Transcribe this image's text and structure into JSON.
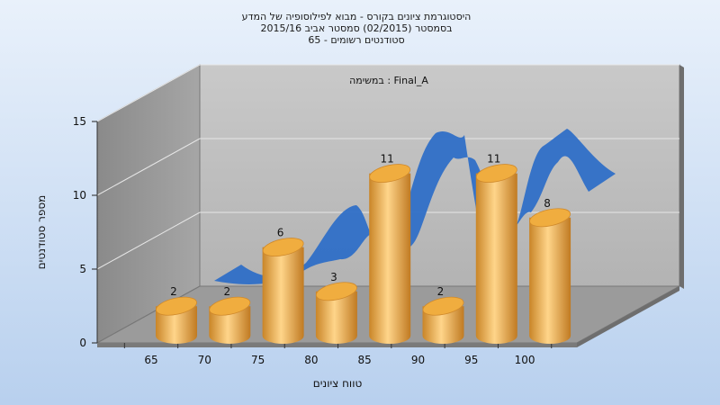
{
  "chart_data": {
    "type": "bar",
    "title_lines": [
      "היסטוגרמת ציונים בקורס - מבוא לפילוסופיה של המדע",
      "בסמסטר  (02/2015)  סמסטר אביב 2015/16",
      "סטודנטים רשומים - 65"
    ],
    "annotation": "במשימה : Final_A",
    "xlabel": "טווח ציונים",
    "ylabel": "מספר סטודנטים",
    "categories": [
      "65",
      "70",
      "75",
      "80",
      "85",
      "90",
      "95",
      "100"
    ],
    "values": [
      2,
      2,
      6,
      3,
      11,
      2,
      11,
      8
    ],
    "y_ticks": [
      "0",
      "5",
      "10",
      "15"
    ],
    "ylim": [
      0,
      15
    ],
    "grid": true,
    "bar_color": "#e8a63d",
    "ribbon_color": "#2f6fc7"
  }
}
